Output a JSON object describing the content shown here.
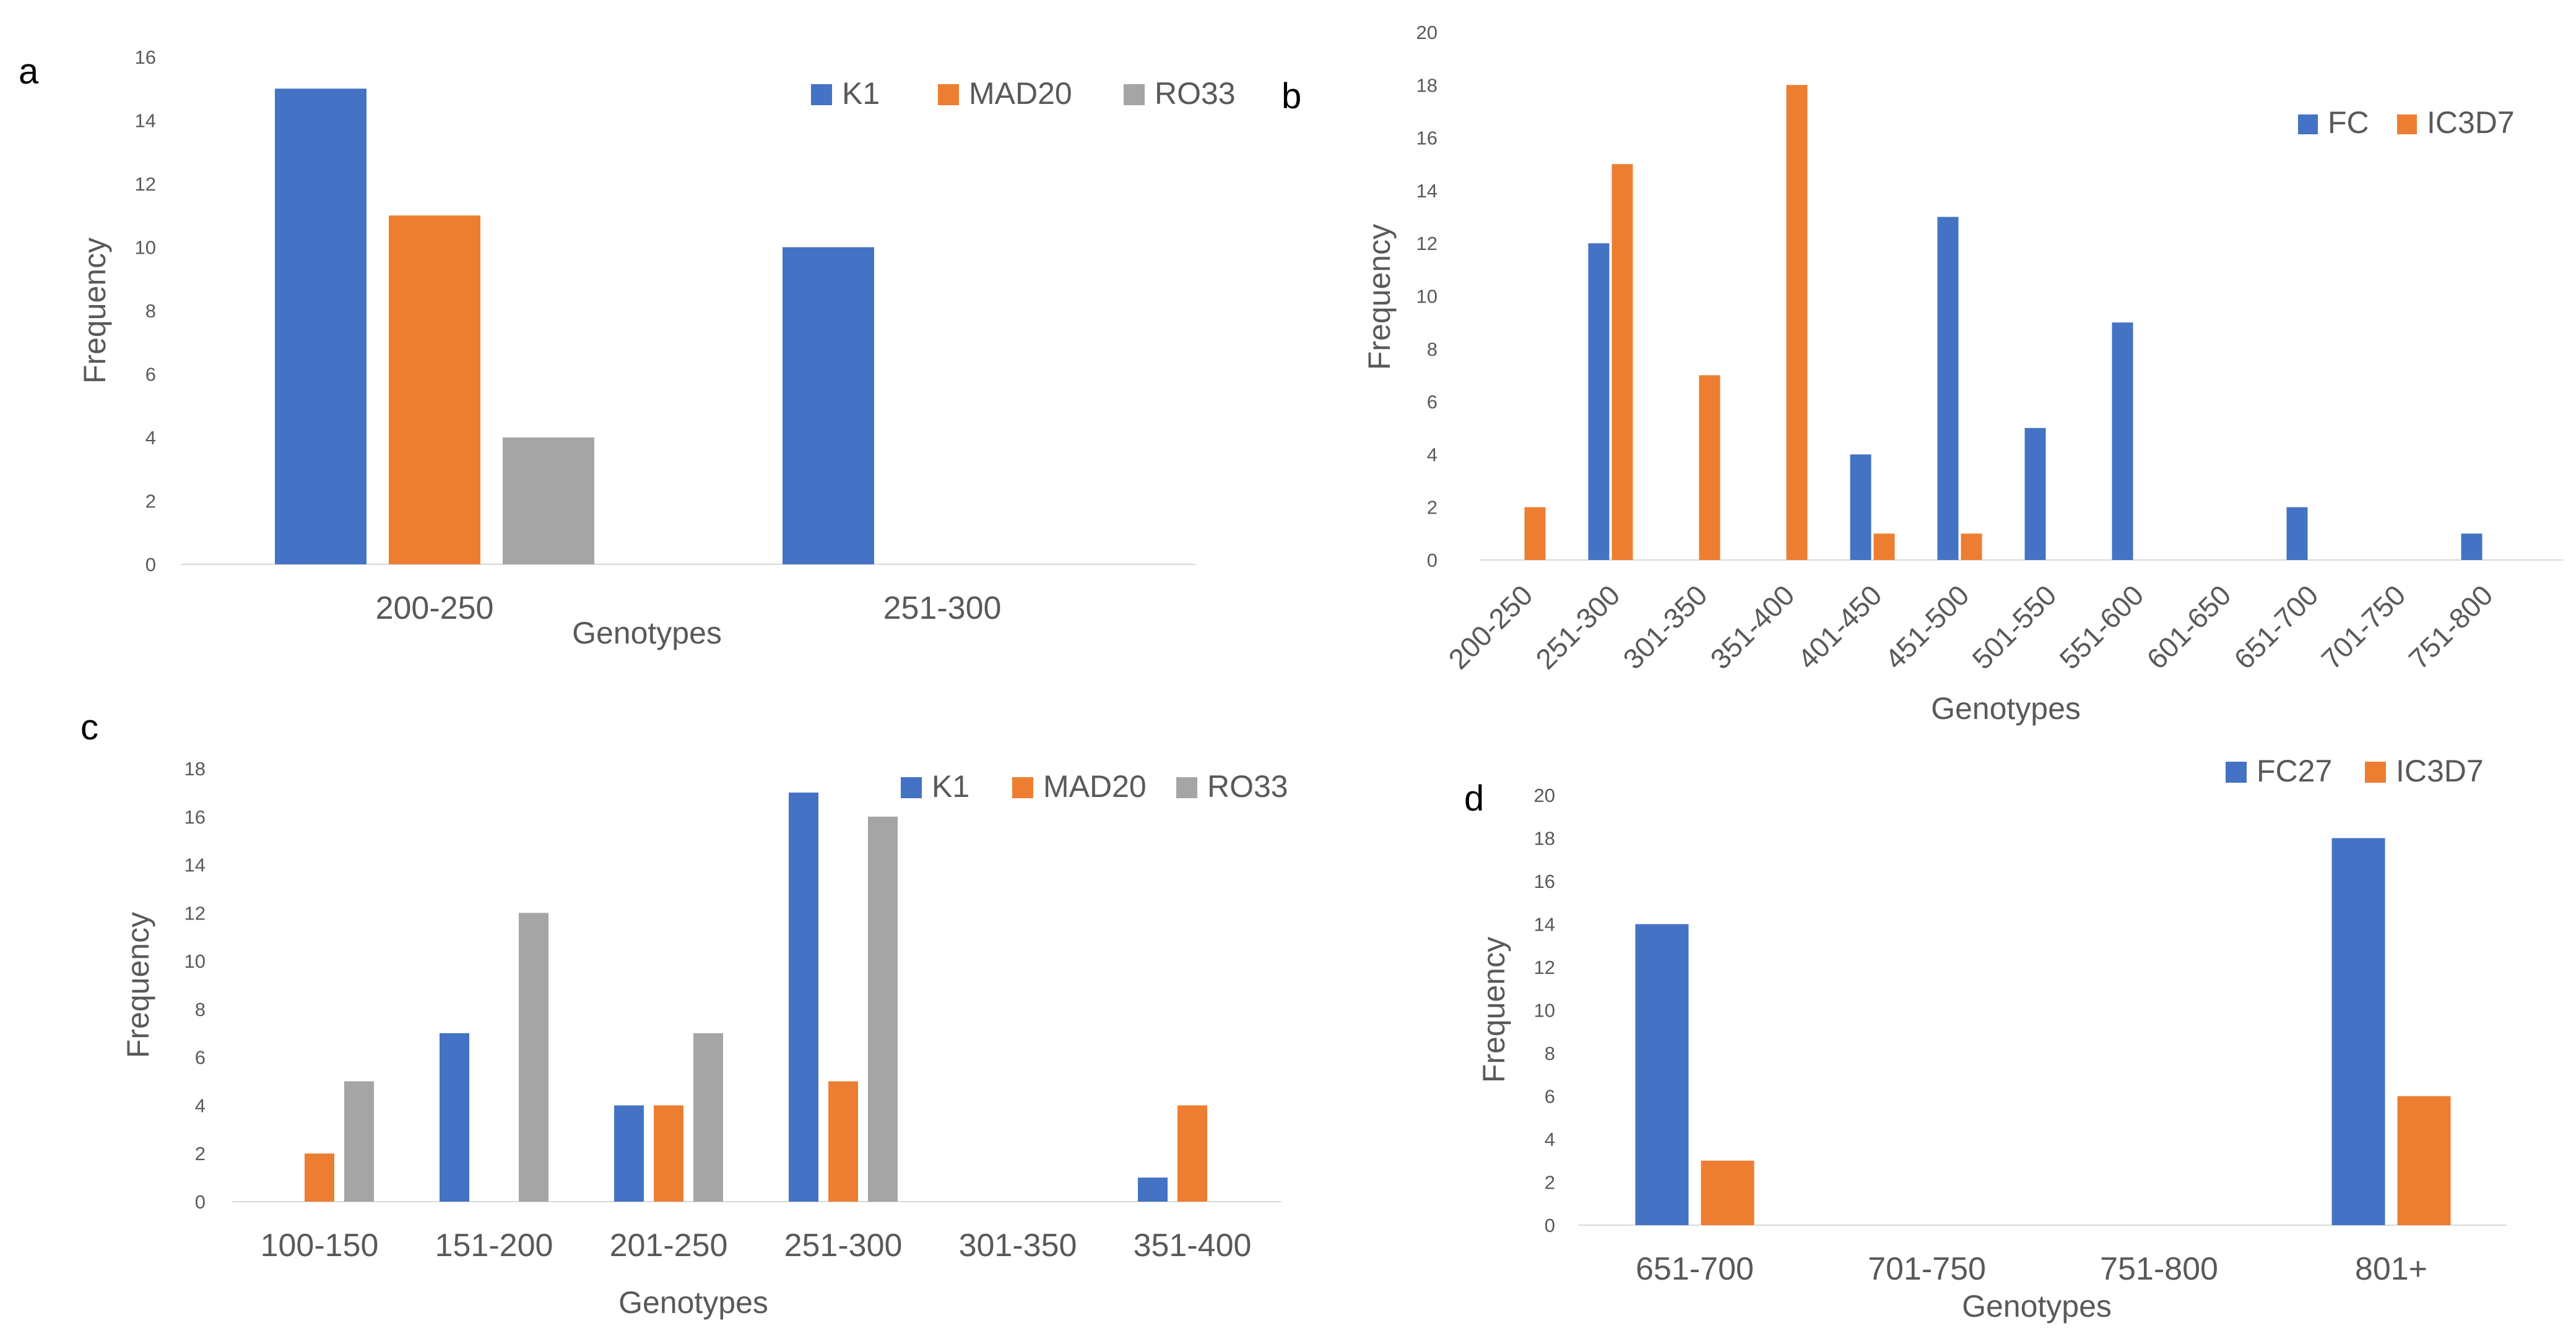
{
  "chart_data": [
    {
      "panel": "a",
      "type": "bar",
      "categories": [
        "200-250",
        "251-300"
      ],
      "series": [
        {
          "name": "K1",
          "values": [
            15,
            10
          ],
          "color": "#4472C4"
        },
        {
          "name": "MAD20",
          "values": [
            11,
            0
          ],
          "color": "#ED7D31"
        },
        {
          "name": "RO33",
          "values": [
            4,
            0
          ],
          "color": "#A5A5A5"
        }
      ],
      "xlabel": "Genotypes",
      "ylabel": "Frequency",
      "ylim": [
        0,
        16
      ],
      "yticks": [
        0,
        2,
        4,
        6,
        8,
        10,
        12,
        14,
        16
      ],
      "legend": "top-right"
    },
    {
      "panel": "b",
      "type": "bar",
      "categories": [
        "200-250",
        "251-300",
        "301-350",
        "351-400",
        "401-450",
        "451-500",
        "501-550",
        "551-600",
        "601-650",
        "651-700",
        "701-750",
        "751-800"
      ],
      "series": [
        {
          "name": "FC",
          "values": [
            0,
            12,
            0,
            0,
            4,
            13,
            5,
            9,
            0,
            2,
            0,
            1
          ],
          "color": "#4472C4"
        },
        {
          "name": "IC3D7",
          "values": [
            2,
            15,
            7,
            18,
            1,
            1,
            0,
            0,
            0,
            0,
            0,
            0
          ],
          "color": "#ED7D31"
        }
      ],
      "xlabel": "Genotypes",
      "ylabel": "Frequency",
      "ylim": [
        0,
        20
      ],
      "yticks": [
        0,
        2,
        4,
        6,
        8,
        10,
        12,
        14,
        16,
        18,
        20
      ],
      "legend": "top-right"
    },
    {
      "panel": "c",
      "type": "bar",
      "categories": [
        "100-150",
        "151-200",
        "201-250",
        "251-300",
        "301-350",
        "351-400"
      ],
      "series": [
        {
          "name": "K1",
          "values": [
            0,
            7,
            4,
            17,
            0,
            1
          ],
          "color": "#4472C4"
        },
        {
          "name": "MAD20",
          "values": [
            2,
            0,
            4,
            5,
            0,
            4
          ],
          "color": "#ED7D31"
        },
        {
          "name": "RO33",
          "values": [
            5,
            12,
            7,
            16,
            0,
            0
          ],
          "color": "#A5A5A5"
        }
      ],
      "xlabel": "Genotypes",
      "ylabel": "Frequency",
      "ylim": [
        0,
        18
      ],
      "yticks": [
        0,
        2,
        4,
        6,
        8,
        10,
        12,
        14,
        16,
        18
      ],
      "legend": "top-right"
    },
    {
      "panel": "d",
      "type": "bar",
      "categories": [
        "651-700",
        "701-750",
        "751-800",
        "801+"
      ],
      "series": [
        {
          "name": "FC27",
          "values": [
            14,
            0,
            0,
            18
          ],
          "color": "#4472C4"
        },
        {
          "name": "IC3D7",
          "values": [
            3,
            0,
            0,
            6
          ],
          "color": "#ED7D31"
        }
      ],
      "xlabel": "Genotypes",
      "ylabel": "Frequency",
      "ylim": [
        0,
        20
      ],
      "yticks": [
        0,
        2,
        4,
        6,
        8,
        10,
        12,
        14,
        16,
        18,
        20
      ],
      "legend": "top-right"
    }
  ]
}
